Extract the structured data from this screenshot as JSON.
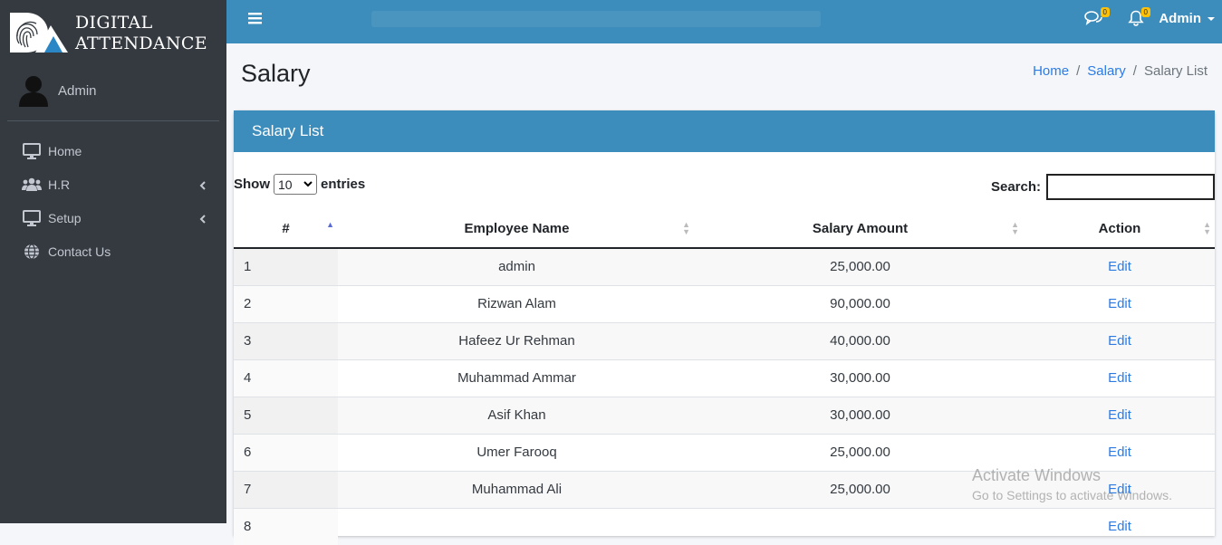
{
  "brand": {
    "line1": "DIGITAL",
    "line2": "ATTENDANCE"
  },
  "user": {
    "name": "Admin"
  },
  "nav": [
    {
      "label": "Home",
      "icon": "monitor-icon",
      "has_submenu": false
    },
    {
      "label": "H.R",
      "icon": "users-icon",
      "has_submenu": true
    },
    {
      "label": "Setup",
      "icon": "monitor-icon",
      "has_submenu": true
    },
    {
      "label": "Contact Us",
      "icon": "globe-icon",
      "has_submenu": false
    }
  ],
  "topbar": {
    "messages_badge": "0",
    "notifications_badge": "0",
    "user_label": "Admin"
  },
  "page": {
    "title": "Salary",
    "breadcrumb": {
      "home": "Home",
      "section": "Salary",
      "current": "Salary List",
      "separator": "/"
    }
  },
  "card": {
    "title": "Salary List",
    "show_label": "Show",
    "entries_value": "10",
    "entries_label": "entries",
    "search_label": "Search:",
    "search_value": ""
  },
  "table": {
    "columns": [
      "#",
      "Employee Name",
      "Salary Amount",
      "Action"
    ],
    "rows": [
      {
        "id": "1",
        "name": "admin",
        "amount": "25,000.00",
        "action": "Edit"
      },
      {
        "id": "2",
        "name": "Rizwan Alam",
        "amount": "90,000.00",
        "action": "Edit"
      },
      {
        "id": "3",
        "name": "Hafeez Ur Rehman",
        "amount": "40,000.00",
        "action": "Edit"
      },
      {
        "id": "4",
        "name": "Muhammad Ammar",
        "amount": "30,000.00",
        "action": "Edit"
      },
      {
        "id": "5",
        "name": "Asif Khan",
        "amount": "30,000.00",
        "action": "Edit"
      },
      {
        "id": "6",
        "name": "Umer Farooq",
        "amount": "25,000.00",
        "action": "Edit"
      },
      {
        "id": "7",
        "name": "Muhammad Ali",
        "amount": "25,000.00",
        "action": "Edit"
      },
      {
        "id": "8",
        "name": "",
        "amount": "",
        "action": "Edit"
      }
    ]
  },
  "watermark": {
    "line1": "Activate Windows",
    "line2": "Go to Settings to activate Windows."
  },
  "colors": {
    "sidebar": "#343a40",
    "primary": "#3c8dbc",
    "link": "#2c7be5",
    "badge": "#ffc107"
  }
}
